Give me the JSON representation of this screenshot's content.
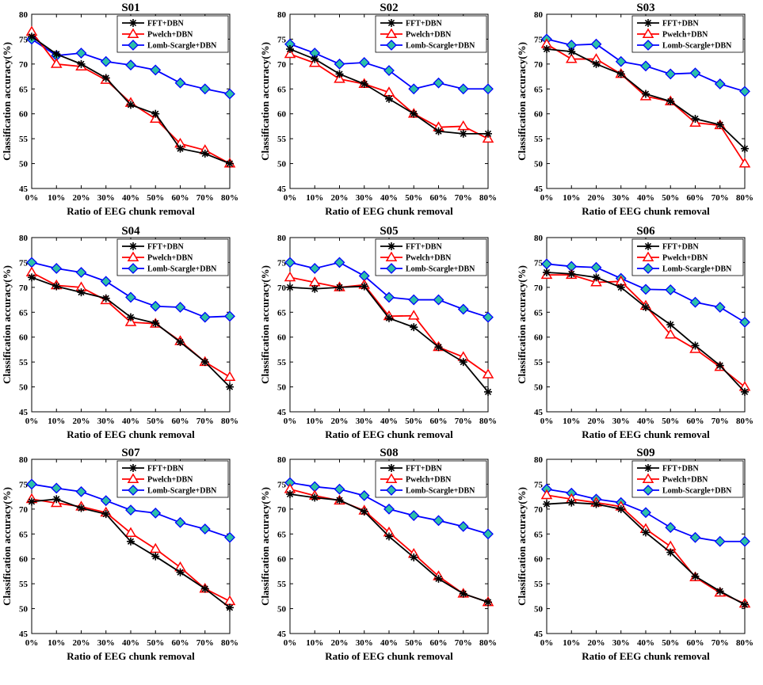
{
  "figure": {
    "x_axis_label": "Ratio of EEG chunk removal",
    "y_axis_label": "Classification accuracy(%)",
    "colors": {
      "FFT+DBN": "#000000",
      "Pwelch+DBN": "#ff0000",
      "Lomb-Scargle+DBN": "#0000ff",
      "Lomb-Scargle+DBN_marker_fill": "#2cc0a8"
    },
    "markers": {
      "FFT+DBN": "asterisk",
      "Pwelch+DBN": "triangle-open",
      "Lomb-Scargle+DBN": "diamond-filled"
    }
  },
  "chart_data": [
    {
      "type": "line",
      "title": "S01",
      "categories": [
        "0%",
        "10%",
        "20%",
        "30%",
        "40%",
        "50%",
        "60%",
        "70%",
        "80%"
      ],
      "xlabel": "Ratio of EEG chunk removal",
      "ylabel": "Classification accuracy(%)",
      "ylim": [
        45,
        80
      ],
      "yticks": [
        45,
        50,
        55,
        60,
        65,
        70,
        75,
        80
      ],
      "legend": "top-right",
      "series": [
        {
          "name": "FFT+DBN",
          "values": [
            75.5,
            72.0,
            70.0,
            67.2,
            61.8,
            60.0,
            53.0,
            52.0,
            50.0
          ]
        },
        {
          "name": "Pwelch+DBN",
          "values": [
            76.5,
            70.0,
            69.5,
            66.8,
            62.2,
            59.0,
            54.0,
            52.7,
            50.0
          ]
        },
        {
          "name": "Lomb-Scargle+DBN",
          "values": [
            75.0,
            71.7,
            72.2,
            70.5,
            69.8,
            68.8,
            66.2,
            65.0,
            64.0
          ]
        }
      ]
    },
    {
      "type": "line",
      "title": "S02",
      "categories": [
        "0%",
        "10%",
        "20%",
        "30%",
        "40%",
        "50%",
        "60%",
        "70%",
        "80%"
      ],
      "xlabel": "Ratio of EEG chunk removal",
      "ylabel": "Classification accuracy(%)",
      "ylim": [
        45,
        80
      ],
      "yticks": [
        45,
        50,
        55,
        60,
        65,
        70,
        75,
        80
      ],
      "legend": "top-right",
      "series": [
        {
          "name": "FFT+DBN",
          "values": [
            73.0,
            71.0,
            68.0,
            66.0,
            63.0,
            60.0,
            56.5,
            56.0,
            56.0
          ]
        },
        {
          "name": "Pwelch+DBN",
          "values": [
            72.0,
            70.2,
            67.0,
            66.0,
            64.3,
            60.0,
            57.3,
            57.5,
            55.0
          ]
        },
        {
          "name": "Lomb-Scargle+DBN",
          "values": [
            74.0,
            72.2,
            70.0,
            70.3,
            68.7,
            65.0,
            66.2,
            65.0,
            65.0
          ]
        }
      ]
    },
    {
      "type": "line",
      "title": "S03",
      "categories": [
        "0%",
        "10%",
        "20%",
        "30%",
        "40%",
        "50%",
        "60%",
        "70%",
        "80%"
      ],
      "xlabel": "Ratio of EEG chunk removal",
      "ylabel": "Classification accuracy(%)",
      "ylim": [
        45,
        80
      ],
      "yticks": [
        45,
        50,
        55,
        60,
        65,
        70,
        75,
        80
      ],
      "legend": "top-right",
      "series": [
        {
          "name": "FFT+DBN",
          "values": [
            73.0,
            72.5,
            70.0,
            68.0,
            64.0,
            62.5,
            59.0,
            57.8,
            53.0
          ]
        },
        {
          "name": "Pwelch+DBN",
          "values": [
            74.0,
            71.0,
            71.0,
            68.0,
            63.5,
            62.5,
            58.2,
            57.7,
            50.0
          ]
        },
        {
          "name": "Lomb-Scargle+DBN",
          "values": [
            75.0,
            73.8,
            74.0,
            70.5,
            69.6,
            68.0,
            68.2,
            66.0,
            64.5
          ]
        }
      ]
    },
    {
      "type": "line",
      "title": "S04",
      "categories": [
        "0%",
        "10%",
        "20%",
        "30%",
        "40%",
        "50%",
        "60%",
        "70%",
        "80%"
      ],
      "xlabel": "Ratio of EEG chunk removal",
      "ylabel": "Classification accuracy(%)",
      "ylim": [
        45,
        80
      ],
      "yticks": [
        45,
        50,
        55,
        60,
        65,
        70,
        75,
        80
      ],
      "legend": "top-right",
      "series": [
        {
          "name": "FFT+DBN",
          "values": [
            72.0,
            70.2,
            69.0,
            67.8,
            64.0,
            62.8,
            59.0,
            55.0,
            50.0
          ]
        },
        {
          "name": "Pwelch+DBN",
          "values": [
            73.0,
            70.4,
            70.0,
            67.4,
            63.0,
            62.7,
            59.2,
            55.0,
            52.0
          ]
        },
        {
          "name": "Lomb-Scargle+DBN",
          "values": [
            75.0,
            73.8,
            73.0,
            71.2,
            68.0,
            66.2,
            66.0,
            64.0,
            64.2
          ]
        }
      ]
    },
    {
      "type": "line",
      "title": "S05",
      "categories": [
        "0%",
        "10%",
        "20%",
        "30%",
        "40%",
        "50%",
        "60%",
        "70%",
        "80%"
      ],
      "xlabel": "Ratio of EEG chunk removal",
      "ylabel": "Classification accuracy(%)",
      "ylim": [
        45,
        80
      ],
      "yticks": [
        45,
        50,
        55,
        60,
        65,
        70,
        75,
        80
      ],
      "legend": "top-right",
      "series": [
        {
          "name": "FFT+DBN",
          "values": [
            70.0,
            69.7,
            70.0,
            70.2,
            63.8,
            62.0,
            58.0,
            55.0,
            49.0
          ]
        },
        {
          "name": "Pwelch+DBN",
          "values": [
            72.0,
            71.0,
            70.0,
            70.5,
            64.2,
            64.3,
            58.0,
            56.0,
            52.5
          ]
        },
        {
          "name": "Lomb-Scargle+DBN",
          "values": [
            75.0,
            73.8,
            75.0,
            72.3,
            68.0,
            67.5,
            67.5,
            65.6,
            64.0
          ]
        }
      ]
    },
    {
      "type": "line",
      "title": "S06",
      "categories": [
        "0%",
        "10%",
        "20%",
        "30%",
        "40%",
        "50%",
        "60%",
        "70%",
        "80%"
      ],
      "xlabel": "Ratio of EEG chunk removal",
      "ylabel": "Classification accuracy(%)",
      "ylim": [
        45,
        80
      ],
      "yticks": [
        45,
        50,
        55,
        60,
        65,
        70,
        75,
        80
      ],
      "legend": "top-right",
      "series": [
        {
          "name": "FFT+DBN",
          "values": [
            73.0,
            72.7,
            72.0,
            70.0,
            66.0,
            62.5,
            58.3,
            54.3,
            49.0
          ]
        },
        {
          "name": "Pwelch+DBN",
          "values": [
            72.5,
            72.5,
            71.0,
            71.2,
            66.3,
            60.5,
            57.6,
            54.0,
            50.0
          ]
        },
        {
          "name": "Lomb-Scargle+DBN",
          "values": [
            74.7,
            74.2,
            74.0,
            71.8,
            69.6,
            69.5,
            67.0,
            66.0,
            63.0
          ]
        }
      ]
    },
    {
      "type": "line",
      "title": "S07",
      "categories": [
        "0%",
        "10%",
        "20%",
        "30%",
        "40%",
        "50%",
        "60%",
        "70%",
        "80%"
      ],
      "xlabel": "Ratio of EEG chunk removal",
      "ylabel": "Classification accuracy(%)",
      "ylim": [
        45,
        80
      ],
      "yticks": [
        45,
        50,
        55,
        60,
        65,
        70,
        75,
        80
      ],
      "legend": "top-right",
      "series": [
        {
          "name": "FFT+DBN",
          "values": [
            71.5,
            72.0,
            70.2,
            69.0,
            63.5,
            60.5,
            57.3,
            54.0,
            50.2
          ]
        },
        {
          "name": "Pwelch+DBN",
          "values": [
            72.0,
            71.2,
            70.5,
            69.3,
            65.2,
            62.0,
            58.3,
            54.0,
            51.5
          ]
        },
        {
          "name": "Lomb-Scargle+DBN",
          "values": [
            75.0,
            74.2,
            73.5,
            71.7,
            69.8,
            69.2,
            67.3,
            66.0,
            64.3
          ]
        }
      ]
    },
    {
      "type": "line",
      "title": "S08",
      "categories": [
        "0%",
        "10%",
        "20%",
        "30%",
        "40%",
        "50%",
        "60%",
        "70%",
        "80%"
      ],
      "xlabel": "Ratio of EEG chunk removal",
      "ylabel": "Classification accuracy(%)",
      "ylim": [
        45,
        80
      ],
      "yticks": [
        45,
        50,
        55,
        60,
        65,
        70,
        75,
        80
      ],
      "legend": "top-right",
      "series": [
        {
          "name": "FFT+DBN",
          "values": [
            73.0,
            72.3,
            71.8,
            69.5,
            64.5,
            60.3,
            56.0,
            53.0,
            51.3
          ]
        },
        {
          "name": "Pwelch+DBN",
          "values": [
            74.0,
            72.7,
            71.7,
            69.7,
            65.3,
            61.0,
            56.5,
            53.0,
            51.3
          ]
        },
        {
          "name": "Lomb-Scargle+DBN",
          "values": [
            75.3,
            74.5,
            74.0,
            72.7,
            70.0,
            68.7,
            67.7,
            66.5,
            65.0
          ]
        }
      ]
    },
    {
      "type": "line",
      "title": "S09",
      "categories": [
        "0%",
        "10%",
        "20%",
        "30%",
        "40%",
        "50%",
        "60%",
        "70%",
        "80%"
      ],
      "xlabel": "Ratio of EEG chunk removal",
      "ylabel": "Classification accuracy(%)",
      "ylim": [
        45,
        80
      ],
      "yticks": [
        45,
        50,
        55,
        60,
        65,
        70,
        75,
        80
      ],
      "legend": "top-right",
      "series": [
        {
          "name": "FFT+DBN",
          "values": [
            71.0,
            71.3,
            71.0,
            70.0,
            65.3,
            61.3,
            56.5,
            53.5,
            50.8
          ]
        },
        {
          "name": "Pwelch+DBN",
          "values": [
            72.8,
            72.0,
            71.3,
            70.5,
            66.0,
            62.5,
            56.3,
            53.2,
            51.0
          ]
        },
        {
          "name": "Lomb-Scargle+DBN",
          "values": [
            74.0,
            73.2,
            72.0,
            71.3,
            69.3,
            66.3,
            64.3,
            63.5,
            63.5
          ]
        }
      ]
    }
  ]
}
